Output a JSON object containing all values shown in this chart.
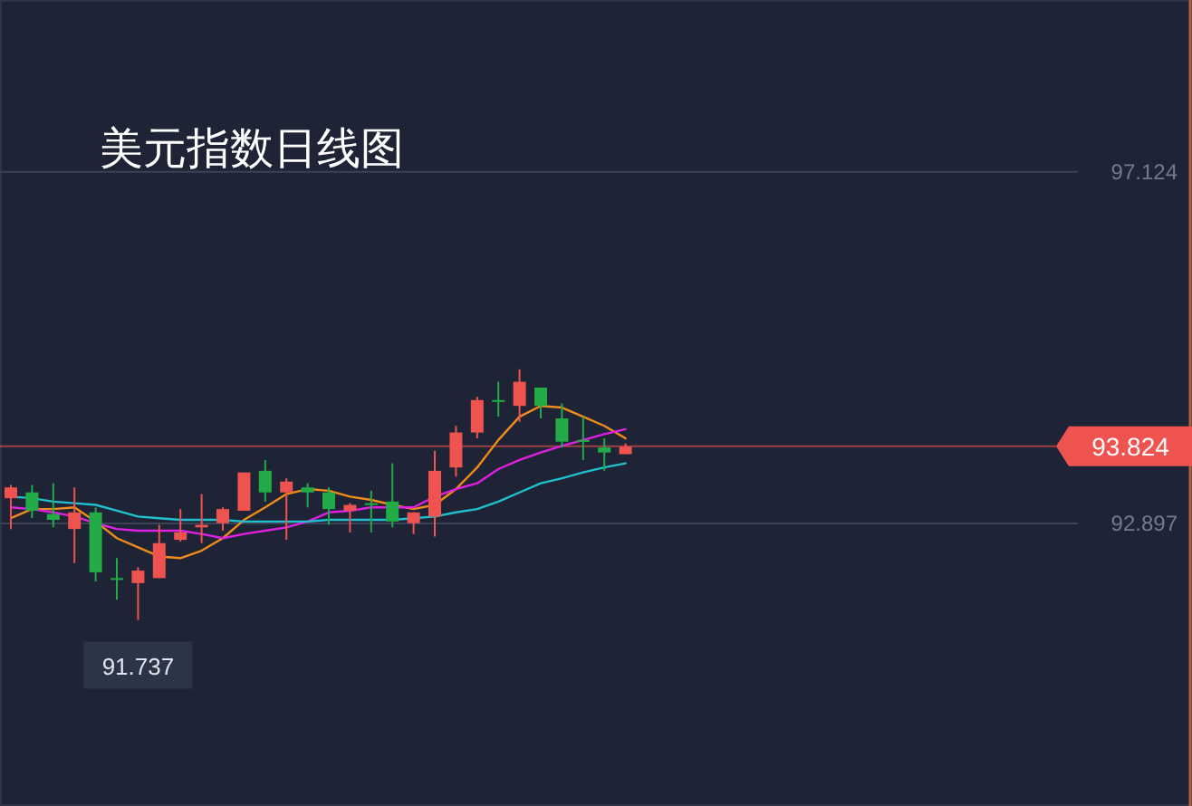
{
  "chart_data": {
    "type": "candlestick",
    "title": "美元指数日线图",
    "categories": [
      null,
      null,
      null,
      null,
      null,
      null,
      null,
      null,
      null,
      null,
      null,
      null,
      null,
      null,
      null,
      null,
      null,
      null,
      null,
      null,
      null,
      null,
      null,
      null,
      null,
      null,
      null,
      null,
      null,
      null
    ],
    "ohlc": [
      [
        93.2,
        93.36,
        92.83,
        93.33
      ],
      [
        93.27,
        93.36,
        92.96,
        93.05
      ],
      [
        93.01,
        93.38,
        92.85,
        92.94
      ],
      [
        92.83,
        93.33,
        92.42,
        93.03
      ],
      [
        93.03,
        93.09,
        92.2,
        92.31
      ],
      [
        92.24,
        92.48,
        91.98,
        92.22
      ],
      [
        92.18,
        92.37,
        91.737,
        92.33
      ],
      [
        92.24,
        92.88,
        92.24,
        92.66
      ],
      [
        92.7,
        93.07,
        92.68,
        92.79
      ],
      [
        92.85,
        93.25,
        92.66,
        92.88
      ],
      [
        92.9,
        93.09,
        92.81,
        93.07
      ],
      [
        93.05,
        93.51,
        93.05,
        93.51
      ],
      [
        93.53,
        93.66,
        93.16,
        93.27
      ],
      [
        93.27,
        93.44,
        92.7,
        93.4
      ],
      [
        93.33,
        93.38,
        93.09,
        93.27
      ],
      [
        93.27,
        93.33,
        92.88,
        93.07
      ],
      [
        93.05,
        93.14,
        92.79,
        93.12
      ],
      [
        93.14,
        93.29,
        92.79,
        93.12
      ],
      [
        93.16,
        93.62,
        92.85,
        92.92
      ],
      [
        92.9,
        93.03,
        92.77,
        93.03
      ],
      [
        92.98,
        93.77,
        92.74,
        93.53
      ],
      [
        93.57,
        94.07,
        93.46,
        93.99
      ],
      [
        93.99,
        94.42,
        93.92,
        94.38
      ],
      [
        94.38,
        94.6,
        94.18,
        94.36
      ],
      [
        94.31,
        94.75,
        94.12,
        94.6
      ],
      [
        94.53,
        94.53,
        94.16,
        94.31
      ],
      [
        94.16,
        94.34,
        93.81,
        93.88
      ],
      [
        93.9,
        94.18,
        93.66,
        93.88
      ],
      [
        93.81,
        93.92,
        93.53,
        93.75
      ],
      [
        93.73,
        93.86,
        93.73,
        93.82
      ]
    ],
    "colors": [
      "#ef5350",
      "#22ab47",
      "#22ab47",
      "#ef5350",
      "#22ab47",
      "#22ab47",
      "#ef5350",
      "#ef5350",
      "#ef5350",
      "#ef5350",
      "#ef5350",
      "#ef5350",
      "#22ab47",
      "#ef5350",
      "#22ab47",
      "#22ab47",
      "#ef5350",
      "#22ab47",
      "#22ab47",
      "#ef5350",
      "#ef5350",
      "#ef5350",
      "#ef5350",
      "#22ab47",
      "#ef5350",
      "#22ab47",
      "#22ab47",
      "#22ab47",
      "#22ab47",
      "#ef5350"
    ],
    "series": [
      {
        "type": "line",
        "color": "#f08c1a",
        "values": [
          92.96,
          93.07,
          93.07,
          93.09,
          92.92,
          92.72,
          92.61,
          92.5,
          92.48,
          92.57,
          92.72,
          92.94,
          93.09,
          93.25,
          93.31,
          93.29,
          93.22,
          93.18,
          93.12,
          93.07,
          93.12,
          93.31,
          93.57,
          93.9,
          94.18,
          94.31,
          94.29,
          94.18,
          94.07,
          93.92
        ]
      },
      {
        "type": "line",
        "color": "#e020e0",
        "values": [
          93.09,
          93.07,
          93.03,
          92.98,
          92.9,
          92.83,
          92.81,
          92.81,
          92.81,
          92.77,
          92.72,
          92.77,
          92.81,
          92.85,
          92.92,
          93.03,
          93.05,
          93.09,
          93.09,
          93.09,
          93.22,
          93.31,
          93.38,
          93.55,
          93.66,
          93.75,
          93.83,
          93.9,
          93.97,
          94.03
        ]
      },
      {
        "type": "line",
        "color": "#20c0d0",
        "values": [
          93.22,
          93.2,
          93.16,
          93.14,
          93.12,
          93.05,
          92.98,
          92.96,
          92.94,
          92.94,
          92.94,
          92.92,
          92.92,
          92.92,
          92.92,
          92.94,
          92.94,
          92.94,
          92.94,
          92.96,
          92.98,
          93.03,
          93.07,
          93.16,
          93.27,
          93.38,
          93.44,
          93.51,
          93.57,
          93.62
        ]
      }
    ],
    "ylim": [
      89.5,
      99.19
    ],
    "yticks": [
      97.124,
      92.897
    ],
    "grid": "y",
    "ref_lines": [
      {
        "axis": "y",
        "value": 93.824,
        "label": "93.824",
        "color": "#ef5350"
      }
    ],
    "annotations": [
      {
        "text": "91.737",
        "y": 91.737
      }
    ]
  }
}
